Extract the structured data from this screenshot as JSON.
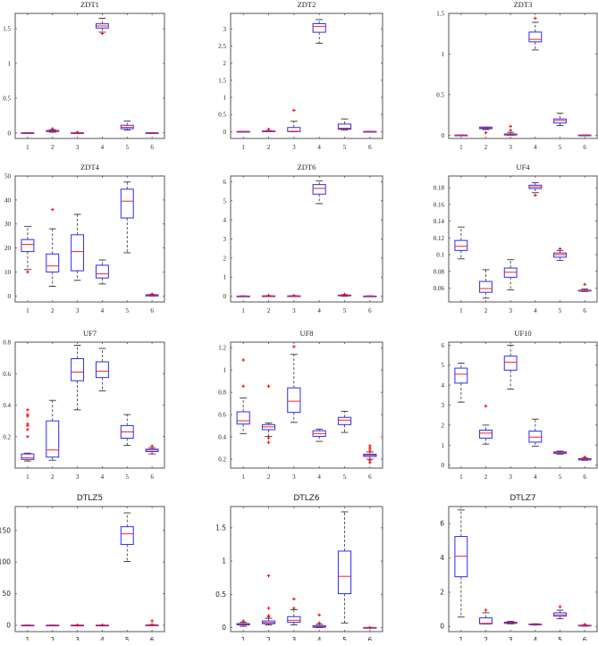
{
  "figure": {
    "layout": {
      "rows": 4,
      "cols": 3
    },
    "colors": {
      "box": "#2b2bff",
      "median": "#ff2020",
      "whisker": "#333333",
      "outlier": "#ff0000",
      "axis": "#555555"
    }
  },
  "chart_data": [
    {
      "type": "box",
      "title": "ZDT1",
      "categories": [
        "1",
        "2",
        "3",
        "4",
        "5",
        "6"
      ],
      "ylim": [
        -0.08,
        1.72
      ],
      "yticks": [
        0,
        0.5,
        1,
        1.5
      ],
      "ytick_labels": [
        "0",
        "0.5",
        "1",
        "1.5"
      ],
      "boxes": [
        {
          "min": 0.0,
          "q1": 0.0,
          "median": 0.0,
          "q3": 0.002,
          "max": 0.003,
          "outliers": []
        },
        {
          "min": 0.01,
          "q1": 0.02,
          "median": 0.028,
          "q3": 0.035,
          "max": 0.045,
          "outliers": [
            0.06
          ]
        },
        {
          "min": 0.0,
          "q1": 0.0,
          "median": 0.0,
          "q3": 0.002,
          "max": 0.004,
          "outliers": [
            0.01
          ]
        },
        {
          "min": 1.45,
          "q1": 1.51,
          "median": 1.54,
          "q3": 1.57,
          "max": 1.65,
          "outliers": [
            1.43
          ]
        },
        {
          "min": 0.04,
          "q1": 0.06,
          "median": 0.08,
          "q3": 0.11,
          "max": 0.17,
          "outliers": []
        },
        {
          "min": 0.0,
          "q1": 0.0,
          "median": 0.0,
          "q3": 0.002,
          "max": 0.003,
          "outliers": []
        }
      ]
    },
    {
      "type": "box",
      "title": "ZDT2",
      "categories": [
        "1",
        "2",
        "3",
        "4",
        "5",
        "6"
      ],
      "ylim": [
        -0.2,
        3.45
      ],
      "yticks": [
        0,
        0.5,
        1,
        1.5,
        2,
        2.5,
        3
      ],
      "ytick_labels": [
        "0",
        "0.5",
        "1",
        "1.5",
        "2",
        "2.5",
        "3"
      ],
      "boxes": [
        {
          "min": 0.0,
          "q1": 0.0,
          "median": 0.0,
          "q3": 0.005,
          "max": 0.01,
          "outliers": []
        },
        {
          "min": 0.0,
          "q1": 0.005,
          "median": 0.01,
          "q3": 0.02,
          "max": 0.03,
          "outliers": [
            0.07
          ]
        },
        {
          "min": 0.0,
          "q1": 0.0,
          "median": 0.01,
          "q3": 0.12,
          "max": 0.3,
          "outliers": [
            0.62
          ]
        },
        {
          "min": 2.58,
          "q1": 2.9,
          "median": 3.07,
          "q3": 3.15,
          "max": 3.27,
          "outliers": []
        },
        {
          "min": 0.05,
          "q1": 0.07,
          "median": 0.1,
          "q3": 0.22,
          "max": 0.37,
          "outliers": []
        },
        {
          "min": 0.0,
          "q1": 0.0,
          "median": 0.0,
          "q3": 0.005,
          "max": 0.01,
          "outliers": []
        }
      ]
    },
    {
      "type": "box",
      "title": "ZDT3",
      "categories": [
        "1",
        "2",
        "3",
        "4",
        "5",
        "6"
      ],
      "ylim": [
        -0.04,
        1.5
      ],
      "yticks": [
        0,
        0.5,
        1,
        1.5
      ],
      "ytick_labels": [
        "0",
        "0.5",
        "1",
        "1.5"
      ],
      "boxes": [
        {
          "min": 0.0,
          "q1": 0.0,
          "median": 0.0,
          "q3": 0.002,
          "max": 0.003,
          "outliers": []
        },
        {
          "min": 0.07,
          "q1": 0.08,
          "median": 0.09,
          "q3": 0.1,
          "max": 0.1,
          "outliers": [
            0.03
          ]
        },
        {
          "min": 0.0,
          "q1": 0.002,
          "median": 0.005,
          "q3": 0.015,
          "max": 0.035,
          "outliers": [
            0.06,
            0.11
          ]
        },
        {
          "min": 1.05,
          "q1": 1.15,
          "median": 1.18,
          "q3": 1.27,
          "max": 1.39,
          "outliers": [
            1.44
          ]
        },
        {
          "min": 0.12,
          "q1": 0.15,
          "median": 0.18,
          "q3": 0.2,
          "max": 0.27,
          "outliers": []
        },
        {
          "min": 0.0,
          "q1": 0.0,
          "median": 0.0,
          "q3": 0.002,
          "max": 0.003,
          "outliers": []
        }
      ]
    },
    {
      "type": "box",
      "title": "ZDT4",
      "categories": [
        "1",
        "2",
        "3",
        "4",
        "5",
        "6"
      ],
      "ylim": [
        -2.5,
        50
      ],
      "yticks": [
        0,
        10,
        20,
        30,
        40,
        50
      ],
      "ytick_labels": [
        "0",
        "10",
        "20",
        "30",
        "40",
        "50"
      ],
      "boxes": [
        {
          "min": 11,
          "q1": 18.5,
          "median": 21.5,
          "q3": 23.5,
          "max": 29,
          "outliers": [
            10
          ]
        },
        {
          "min": 4,
          "q1": 10,
          "median": 12.5,
          "q3": 17.5,
          "max": 28,
          "outliers": [
            36
          ]
        },
        {
          "min": 6.5,
          "q1": 10.5,
          "median": 18.5,
          "q3": 25.5,
          "max": 34,
          "outliers": []
        },
        {
          "min": 5,
          "q1": 7.5,
          "median": 9.2,
          "q3": 12.8,
          "max": 15,
          "outliers": []
        },
        {
          "min": 18,
          "q1": 32.5,
          "median": 39.5,
          "q3": 44.5,
          "max": 47.5,
          "outliers": []
        },
        {
          "min": 0,
          "q1": 0,
          "median": 0.2,
          "q3": 0.5,
          "max": 0.6,
          "outliers": [
            0.8
          ]
        }
      ]
    },
    {
      "type": "box",
      "title": "ZDT6",
      "categories": [
        "1",
        "2",
        "3",
        "4",
        "5",
        "6"
      ],
      "ylim": [
        -0.3,
        6.3
      ],
      "yticks": [
        0,
        1,
        2,
        3,
        4,
        5,
        6
      ],
      "ytick_labels": [
        "0",
        "1",
        "2",
        "3",
        "4",
        "5",
        "6"
      ],
      "boxes": [
        {
          "min": 0.0,
          "q1": 0.0,
          "median": 0.0,
          "q3": 0.01,
          "max": 0.02,
          "outliers": []
        },
        {
          "min": 0.0,
          "q1": 0.0,
          "median": 0.01,
          "q3": 0.02,
          "max": 0.03,
          "outliers": [
            0.04
          ]
        },
        {
          "min": 0.0,
          "q1": 0.0,
          "median": 0.01,
          "q3": 0.02,
          "max": 0.03,
          "outliers": [
            0.04
          ]
        },
        {
          "min": 4.85,
          "q1": 5.35,
          "median": 5.65,
          "q3": 5.85,
          "max": 6.05,
          "outliers": []
        },
        {
          "min": 0.0,
          "q1": 0.02,
          "median": 0.04,
          "q3": 0.06,
          "max": 0.08,
          "outliers": [
            0.1
          ]
        },
        {
          "min": 0.0,
          "q1": 0.0,
          "median": 0.0,
          "q3": 0.01,
          "max": 0.02,
          "outliers": []
        }
      ]
    },
    {
      "type": "box",
      "title": "UF4",
      "categories": [
        "1",
        "2",
        "3",
        "4",
        "5",
        "6"
      ],
      "ylim": [
        0.0435,
        0.194
      ],
      "yticks": [
        0.06,
        0.08,
        0.1,
        0.12,
        0.14,
        0.16,
        0.18
      ],
      "ytick_labels": [
        "0.06",
        "0.08",
        "0.1",
        "0.12",
        "0.14",
        "0.16",
        "0.18"
      ],
      "boxes": [
        {
          "min": 0.095,
          "q1": 0.105,
          "median": 0.11,
          "q3": 0.117,
          "max": 0.133,
          "outliers": []
        },
        {
          "min": 0.048,
          "q1": 0.055,
          "median": 0.0595,
          "q3": 0.068,
          "max": 0.082,
          "outliers": []
        },
        {
          "min": 0.058,
          "q1": 0.073,
          "median": 0.079,
          "q3": 0.084,
          "max": 0.094,
          "outliers": []
        },
        {
          "min": 0.174,
          "q1": 0.179,
          "median": 0.181,
          "q3": 0.183,
          "max": 0.186,
          "outliers": [
            0.171
          ]
        },
        {
          "min": 0.093,
          "q1": 0.097,
          "median": 0.1,
          "q3": 0.102,
          "max": 0.105,
          "outliers": [
            0.107
          ]
        },
        {
          "min": 0.056,
          "q1": 0.0565,
          "median": 0.057,
          "q3": 0.0575,
          "max": 0.059,
          "outliers": [
            0.0645
          ]
        }
      ]
    },
    {
      "type": "box",
      "title": "UF7",
      "categories": [
        "1",
        "2",
        "3",
        "4",
        "5",
        "6"
      ],
      "ylim": [
        0.0,
        0.8
      ],
      "yticks": [
        0.2,
        0.4,
        0.6,
        0.8
      ],
      "ytick_labels": [
        "0.2",
        "0.4",
        "0.6",
        "0.8"
      ],
      "boxes": [
        {
          "min": 0.045,
          "q1": 0.055,
          "median": 0.065,
          "q3": 0.09,
          "max": 0.095,
          "outliers": [
            0.2,
            0.245,
            0.27,
            0.28,
            0.33,
            0.34,
            0.37
          ]
        },
        {
          "min": 0.05,
          "q1": 0.07,
          "median": 0.115,
          "q3": 0.3,
          "max": 0.43,
          "outliers": []
        },
        {
          "min": 0.37,
          "q1": 0.555,
          "median": 0.61,
          "q3": 0.695,
          "max": 0.78,
          "outliers": []
        },
        {
          "min": 0.49,
          "q1": 0.575,
          "median": 0.615,
          "q3": 0.675,
          "max": 0.76,
          "outliers": []
        },
        {
          "min": 0.145,
          "q1": 0.19,
          "median": 0.23,
          "q3": 0.27,
          "max": 0.34,
          "outliers": []
        },
        {
          "min": 0.09,
          "q1": 0.105,
          "median": 0.115,
          "q3": 0.12,
          "max": 0.13,
          "outliers": [
            0.14
          ]
        }
      ]
    },
    {
      "type": "box",
      "title": "UF8",
      "categories": [
        "1",
        "2",
        "3",
        "4",
        "5",
        "6"
      ],
      "ylim": [
        0.12,
        1.25
      ],
      "yticks": [
        0.2,
        0.4,
        0.6,
        0.8,
        1,
        1.2
      ],
      "ytick_labels": [
        "0.2",
        "0.4",
        "0.6",
        "0.8",
        "1",
        "1.2"
      ],
      "boxes": [
        {
          "min": 0.43,
          "q1": 0.515,
          "median": 0.545,
          "q3": 0.625,
          "max": 0.75,
          "outliers": [
            0.855,
            1.09
          ]
        },
        {
          "min": 0.405,
          "q1": 0.465,
          "median": 0.49,
          "q3": 0.51,
          "max": 0.525,
          "outliers": [
            0.35,
            0.39,
            0.855
          ]
        },
        {
          "min": 0.53,
          "q1": 0.62,
          "median": 0.72,
          "q3": 0.84,
          "max": 1.14,
          "outliers": [
            1.21
          ]
        },
        {
          "min": 0.36,
          "q1": 0.405,
          "median": 0.43,
          "q3": 0.455,
          "max": 0.47,
          "outliers": []
        },
        {
          "min": 0.44,
          "q1": 0.51,
          "median": 0.55,
          "q3": 0.575,
          "max": 0.63,
          "outliers": []
        },
        {
          "min": 0.2,
          "q1": 0.225,
          "median": 0.235,
          "q3": 0.245,
          "max": 0.265,
          "outliers": [
            0.17,
            0.19,
            0.28,
            0.3,
            0.32
          ]
        }
      ]
    },
    {
      "type": "box",
      "title": "UF10",
      "categories": [
        "1",
        "2",
        "3",
        "4",
        "5",
        "6"
      ],
      "ylim": [
        -0.15,
        6.15
      ],
      "yticks": [
        0,
        1,
        2,
        3,
        4,
        5,
        6
      ],
      "ytick_labels": [
        "0",
        "1",
        "2",
        "3",
        "4",
        "5",
        "6"
      ],
      "boxes": [
        {
          "min": 3.15,
          "q1": 4.1,
          "median": 4.55,
          "q3": 4.85,
          "max": 5.1,
          "outliers": []
        },
        {
          "min": 1.05,
          "q1": 1.35,
          "median": 1.6,
          "q3": 1.75,
          "max": 2.0,
          "outliers": [
            2.95
          ]
        },
        {
          "min": 3.8,
          "q1": 4.75,
          "median": 5.15,
          "q3": 5.45,
          "max": 6.0,
          "outliers": []
        },
        {
          "min": 0.95,
          "q1": 1.15,
          "median": 1.4,
          "q3": 1.7,
          "max": 2.3,
          "outliers": []
        },
        {
          "min": 0.55,
          "q1": 0.58,
          "median": 0.62,
          "q3": 0.66,
          "max": 0.7,
          "outliers": []
        },
        {
          "min": 0.24,
          "q1": 0.26,
          "median": 0.28,
          "q3": 0.32,
          "max": 0.35,
          "outliers": [
            0.4
          ]
        }
      ]
    },
    {
      "type": "box",
      "title": "DTLZ5",
      "categories": [
        "1",
        "2",
        "3",
        "4",
        "5",
        "6"
      ],
      "ylim": [
        -10,
        188
      ],
      "yticks": [
        0,
        50,
        100,
        150
      ],
      "ytick_labels": [
        "0",
        "50",
        "100",
        "150"
      ],
      "boxes": [
        {
          "min": 0,
          "q1": 0,
          "median": 0,
          "q3": 0.2,
          "max": 0.3,
          "outliers": []
        },
        {
          "min": 0,
          "q1": 0,
          "median": 0,
          "q3": 0.2,
          "max": 0.3,
          "outliers": []
        },
        {
          "min": 0,
          "q1": 0,
          "median": 0,
          "q3": 0.2,
          "max": 0.3,
          "outliers": [
            0.5
          ]
        },
        {
          "min": 0,
          "q1": 0,
          "median": 0,
          "q3": 0.2,
          "max": 0.3,
          "outliers": [
            0.5
          ]
        },
        {
          "min": 101,
          "q1": 128,
          "median": 145,
          "q3": 156,
          "max": 178,
          "outliers": []
        },
        {
          "min": 0,
          "q1": 0,
          "median": 0,
          "q3": 0.5,
          "max": 1,
          "outliers": [
            1,
            7
          ]
        }
      ]
    },
    {
      "type": "box",
      "title": "DTLZ6",
      "categories": [
        "1",
        "2",
        "3",
        "4",
        "5",
        "6"
      ],
      "ylim": [
        -0.06,
        1.82
      ],
      "yticks": [
        0,
        0.5,
        1,
        1.5
      ],
      "ytick_labels": [
        "0",
        "0.5",
        "1",
        "1.5"
      ],
      "boxes": [
        {
          "min": 0.02,
          "q1": 0.04,
          "median": 0.05,
          "q3": 0.06,
          "max": 0.08,
          "outliers": [
            0.1
          ]
        },
        {
          "min": 0.04,
          "q1": 0.06,
          "median": 0.075,
          "q3": 0.1,
          "max": 0.14,
          "outliers": [
            0.16,
            0.18,
            0.29,
            0.78
          ]
        },
        {
          "min": 0.04,
          "q1": 0.08,
          "median": 0.11,
          "q3": 0.165,
          "max": 0.27,
          "outliers": [
            0.29,
            0.43
          ]
        },
        {
          "min": 0.0,
          "q1": 0.005,
          "median": 0.015,
          "q3": 0.03,
          "max": 0.05,
          "outliers": [
            0.07,
            0.19
          ]
        },
        {
          "min": 0.07,
          "q1": 0.51,
          "median": 0.77,
          "q3": 1.15,
          "max": 1.74,
          "outliers": []
        },
        {
          "min": 0.0,
          "q1": 0.0,
          "median": 0.0,
          "q3": 0.002,
          "max": 0.003,
          "outliers": [
            0.0
          ]
        }
      ]
    },
    {
      "type": "box",
      "title": "DTLZ7",
      "categories": [
        "1",
        "2",
        "3",
        "4",
        "5",
        "6"
      ],
      "ylim": [
        -0.3,
        7.0
      ],
      "yticks": [
        0,
        2,
        4,
        6
      ],
      "ytick_labels": [
        "0",
        "2",
        "4",
        "6"
      ],
      "boxes": [
        {
          "min": 0.55,
          "q1": 2.9,
          "median": 4.1,
          "q3": 5.25,
          "max": 6.8,
          "outliers": []
        },
        {
          "min": 0.15,
          "q1": 0.15,
          "median": 0.18,
          "q3": 0.5,
          "max": 0.8,
          "outliers": [
            0.95
          ]
        },
        {
          "min": 0.15,
          "q1": 0.18,
          "median": 0.22,
          "q3": 0.25,
          "max": 0.3,
          "outliers": []
        },
        {
          "min": 0.08,
          "q1": 0.1,
          "median": 0.12,
          "q3": 0.14,
          "max": 0.16,
          "outliers": []
        },
        {
          "min": 0.45,
          "q1": 0.6,
          "median": 0.68,
          "q3": 0.8,
          "max": 0.95,
          "outliers": [
            1.15
          ]
        },
        {
          "min": 0.02,
          "q1": 0.04,
          "median": 0.05,
          "q3": 0.07,
          "max": 0.08,
          "outliers": [
            0.12
          ]
        }
      ]
    }
  ]
}
